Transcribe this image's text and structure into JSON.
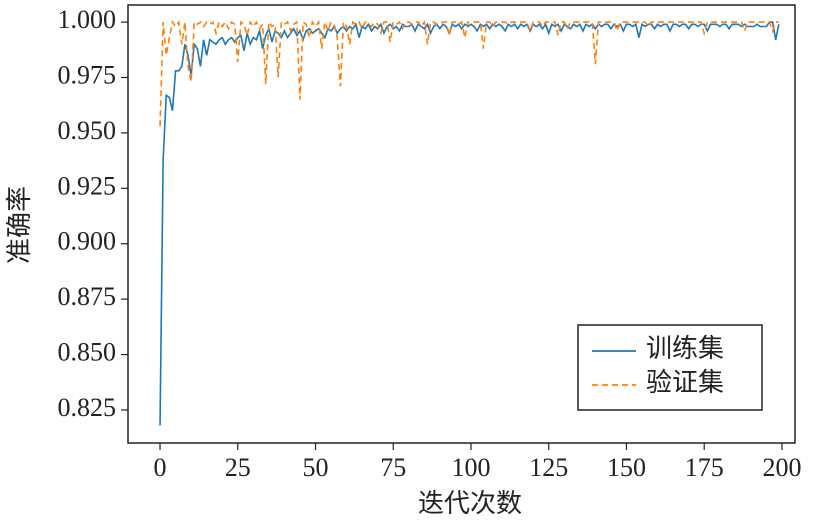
{
  "chart_data": {
    "type": "line",
    "xlabel": "迭代次数",
    "ylabel": "准确率",
    "xlim": [
      -10.3,
      204.2
    ],
    "ylim": [
      0.8101,
      1.0077
    ],
    "xticks": [
      0,
      25,
      50,
      75,
      100,
      125,
      150,
      175,
      200
    ],
    "yticks": [
      {
        "value": 0.825,
        "label": "0.825"
      },
      {
        "value": 0.85,
        "label": "0.850"
      },
      {
        "value": 0.875,
        "label": "0.875"
      },
      {
        "value": 0.9,
        "label": "0.900"
      },
      {
        "value": 0.925,
        "label": "0.925"
      },
      {
        "value": 0.95,
        "label": "0.950"
      },
      {
        "value": 0.975,
        "label": "0.975"
      },
      {
        "value": 1.0,
        "label": "1.000"
      }
    ],
    "legend": "lower right",
    "x": [
      0,
      1,
      2,
      3,
      4,
      5,
      6,
      7,
      8,
      9,
      10,
      11,
      12,
      13,
      14,
      15,
      16,
      17,
      18,
      19,
      20,
      21,
      22,
      23,
      24,
      25,
      26,
      27,
      28,
      29,
      30,
      31,
      32,
      33,
      34,
      35,
      36,
      37,
      38,
      39,
      40,
      41,
      42,
      43,
      44,
      45,
      46,
      47,
      48,
      49,
      50,
      51,
      52,
      53,
      54,
      55,
      56,
      57,
      58,
      59,
      60,
      61,
      62,
      63,
      64,
      65,
      66,
      67,
      68,
      69,
      70,
      71,
      72,
      73,
      74,
      75,
      76,
      77,
      78,
      79,
      80,
      81,
      82,
      83,
      84,
      85,
      86,
      87,
      88,
      89,
      90,
      91,
      92,
      93,
      94,
      95,
      96,
      97,
      98,
      99,
      100,
      101,
      102,
      103,
      104,
      105,
      106,
      107,
      108,
      109,
      110,
      111,
      112,
      113,
      114,
      115,
      116,
      117,
      118,
      119,
      120,
      121,
      122,
      123,
      124,
      125,
      126,
      127,
      128,
      129,
      130,
      131,
      132,
      133,
      134,
      135,
      136,
      137,
      138,
      139,
      140,
      141,
      142,
      143,
      144,
      145,
      146,
      147,
      148,
      149,
      150,
      151,
      152,
      153,
      154,
      155,
      156,
      157,
      158,
      159,
      160,
      161,
      162,
      163,
      164,
      165,
      166,
      167,
      168,
      169,
      170,
      171,
      172,
      173,
      174,
      175,
      176,
      177,
      178,
      179,
      180,
      181,
      182,
      183,
      184,
      185,
      186,
      187,
      188,
      189,
      190,
      191,
      192,
      193,
      194,
      195,
      196,
      197,
      198,
      199
    ],
    "series": [
      {
        "name": "训练集",
        "color": "#1f77b4",
        "dash": "solid",
        "values": [
          0.818,
          0.938,
          0.967,
          0.966,
          0.96,
          0.978,
          0.978,
          0.98,
          0.99,
          0.985,
          0.976,
          0.99,
          0.988,
          0.98,
          0.992,
          0.985,
          0.992,
          0.991,
          0.99,
          0.992,
          0.993,
          0.99,
          0.992,
          0.993,
          0.991,
          0.993,
          0.994,
          0.987,
          0.995,
          0.99,
          0.993,
          0.992,
          0.996,
          0.988,
          0.994,
          0.997,
          0.991,
          0.996,
          0.995,
          0.993,
          0.996,
          0.993,
          0.995,
          0.997,
          0.994,
          0.996,
          0.992,
          0.996,
          0.997,
          0.995,
          0.996,
          0.997,
          0.995,
          0.993,
          0.997,
          0.996,
          0.998,
          0.995,
          0.997,
          0.998,
          0.996,
          0.998,
          0.997,
          0.999,
          0.993,
          0.998,
          0.997,
          0.999,
          0.996,
          0.998,
          0.997,
          0.999,
          0.995,
          0.998,
          0.999,
          0.997,
          0.998,
          0.996,
          0.999,
          0.998,
          0.998,
          0.999,
          0.996,
          0.999,
          0.998,
          0.997,
          0.999,
          0.995,
          0.998,
          0.999,
          0.997,
          0.999,
          0.998,
          0.995,
          0.999,
          0.998,
          0.999,
          0.997,
          0.999,
          0.998,
          0.999,
          0.998,
          0.996,
          0.999,
          0.998,
          0.999,
          0.997,
          0.999,
          0.998,
          0.999,
          0.998,
          0.996,
          0.999,
          0.998,
          0.999,
          0.997,
          0.999,
          0.998,
          0.999,
          0.996,
          0.999,
          0.998,
          0.999,
          0.997,
          0.999,
          0.995,
          0.999,
          0.998,
          0.999,
          0.996,
          0.999,
          0.998,
          0.997,
          0.999,
          0.998,
          0.999,
          0.996,
          0.999,
          0.998,
          0.999,
          0.997,
          0.999,
          0.998,
          0.999,
          0.999,
          0.997,
          0.999,
          0.998,
          0.999,
          0.996,
          0.999,
          0.999,
          0.998,
          0.999,
          0.993,
          0.999,
          0.998,
          0.999,
          0.999,
          0.997,
          0.999,
          0.998,
          0.999,
          0.999,
          0.996,
          0.999,
          0.999,
          0.998,
          0.999,
          0.999,
          0.997,
          0.999,
          0.999,
          0.998,
          0.999,
          0.999,
          0.996,
          0.999,
          0.999,
          0.999,
          0.998,
          0.999,
          0.999,
          0.997,
          0.999,
          0.999,
          0.999,
          0.998,
          0.999,
          0.998,
          0.998,
          0.998,
          0.999,
          0.998,
          0.998,
          0.998,
          1.0,
          1.0,
          0.992,
          0.999
        ]
      },
      {
        "name": "验证集",
        "color": "#ff7f0e",
        "dash": "dashed",
        "values": [
          0.953,
          1.0,
          0.985,
          0.993,
          1.0,
          0.998,
          1.0,
          0.99,
          1.0,
          0.98,
          0.973,
          1.0,
          0.999,
          1.0,
          0.998,
          1.0,
          0.999,
          1.0,
          0.995,
          1.0,
          0.998,
          1.0,
          0.997,
          1.0,
          0.999,
          0.982,
          1.0,
          0.999,
          0.994,
          1.0,
          0.998,
          1.0,
          0.997,
          0.999,
          0.972,
          1.0,
          0.998,
          0.999,
          0.975,
          1.0,
          0.999,
          1.0,
          0.996,
          0.999,
          1.0,
          0.965,
          1.0,
          0.999,
          0.993,
          1.0,
          0.998,
          1.0,
          0.988,
          1.0,
          0.996,
          1.0,
          0.999,
          0.993,
          0.971,
          1.0,
          0.998,
          0.99,
          1.0,
          0.999,
          1.0,
          0.997,
          1.0,
          0.999,
          0.998,
          1.0,
          0.999,
          0.995,
          1.0,
          1.0,
          0.991,
          1.0,
          0.999,
          1.0,
          0.997,
          1.0,
          1.0,
          0.999,
          1.0,
          1.0,
          0.998,
          1.0,
          0.99,
          1.0,
          1.0,
          0.999,
          1.0,
          1.0,
          1.0,
          0.994,
          1.0,
          1.0,
          0.999,
          1.0,
          0.993,
          1.0,
          1.0,
          1.0,
          1.0,
          1.0,
          0.988,
          1.0,
          1.0,
          0.998,
          1.0,
          1.0,
          1.0,
          1.0,
          0.999,
          1.0,
          1.0,
          1.0,
          1.0,
          1.0,
          1.0,
          0.996,
          1.0,
          1.0,
          1.0,
          0.998,
          1.0,
          1.0,
          1.0,
          1.0,
          0.994,
          1.0,
          1.0,
          0.997,
          1.0,
          1.0,
          1.0,
          1.0,
          1.0,
          1.0,
          1.0,
          1.0,
          0.981,
          1.0,
          1.0,
          1.0,
          1.0,
          1.0,
          1.0,
          0.996,
          1.0,
          1.0,
          1.0,
          1.0,
          1.0,
          1.0,
          1.0,
          1.0,
          1.0,
          0.998,
          1.0,
          1.0,
          1.0,
          1.0,
          1.0,
          1.0,
          1.0,
          1.0,
          1.0,
          1.0,
          1.0,
          1.0,
          1.0,
          1.0,
          1.0,
          1.0,
          1.0,
          0.995,
          1.0,
          1.0,
          1.0,
          1.0,
          1.0,
          1.0,
          1.0,
          1.0,
          1.0,
          1.0,
          1.0,
          1.0,
          0.996,
          1.0,
          1.0,
          1.0,
          1.0,
          1.0,
          1.0,
          1.0,
          1.0,
          0.996,
          1.0,
          1.0
        ]
      }
    ]
  }
}
